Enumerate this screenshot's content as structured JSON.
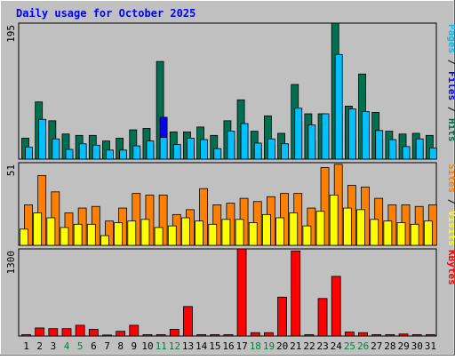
{
  "chart_data": {
    "type": "bar",
    "title": "Daily usage for October 2025",
    "categories": [
      "1",
      "2",
      "3",
      "4",
      "5",
      "6",
      "7",
      "8",
      "9",
      "10",
      "11",
      "12",
      "13",
      "14",
      "15",
      "16",
      "17",
      "18",
      "19",
      "20",
      "21",
      "22",
      "23",
      "24",
      "25",
      "26",
      "27",
      "28",
      "29",
      "30",
      "31"
    ],
    "weekend_days": [
      "4",
      "5",
      "11",
      "12",
      "18",
      "19",
      "25",
      "26"
    ],
    "panels": [
      {
        "id": "hits-files-pages",
        "ymax": 195,
        "ymax_label": "195",
        "labels": [
          "Pages",
          "Files",
          "Hits"
        ],
        "label_colors": [
          "#00c0ff",
          "#0000ff",
          "#007050"
        ],
        "series": [
          {
            "name": "Hits",
            "color": "#007050",
            "values": [
              30,
              82,
              55,
              36,
              34,
              34,
              26,
              30,
              42,
              44,
              140,
              39,
              39,
              46,
              34,
              55,
              85,
              40,
              62,
              37,
              107,
              65,
              65,
              195,
              76,
              122,
              67,
              40,
              36,
              37,
              34
            ]
          },
          {
            "name": "Files",
            "color": "#0000ff",
            "values": [
              14,
              40,
              24,
              12,
              15,
              12,
              10,
              10,
              14,
              22,
              60,
              16,
              18,
              19,
              12,
              28,
              38,
              15,
              20,
              15,
              54,
              26,
              34,
              65,
              28,
              55,
              26,
              20,
              17,
              20,
              15
            ]
          },
          {
            "name": "Pages",
            "color": "#00c0ff",
            "values": [
              17,
              57,
              29,
              14,
              22,
              20,
              13,
              13,
              19,
              26,
              31,
              21,
              30,
              28,
              15,
              40,
              51,
              23,
              29,
              22,
              73,
              49,
              65,
              150,
              72,
              68,
              41,
              28,
              18,
              29,
              16
            ]
          }
        ]
      },
      {
        "id": "visits-sites",
        "ymax": 51,
        "ymax_label": "51",
        "labels": [
          "Sites",
          "Visits"
        ],
        "label_colors": [
          "#ff8000",
          "#ffff00"
        ],
        "series": [
          {
            "name": "Visits",
            "color": "#ff8000",
            "values": [
              25,
              43,
              33,
              20,
              23,
              24,
              15,
              23,
              32,
              31,
              31,
              19,
              22,
              35,
              25,
              26,
              29,
              27,
              30,
              32,
              32,
              23,
              48,
              50,
              37,
              36,
              29,
              25,
              25,
              24,
              25
            ]
          },
          {
            "name": "Sites",
            "color": "#ffff00",
            "values": [
              10,
              20,
              17,
              11,
              13,
              13,
              6,
              14,
              15,
              16,
              11,
              12,
              17,
              15,
              13,
              16,
              16,
              14,
              19,
              17,
              20,
              12,
              21,
              31,
              23,
              22,
              16,
              15,
              14,
              13,
              15
            ]
          }
        ]
      },
      {
        "id": "kbytes",
        "ymax": 1300,
        "ymax_label": "1300",
        "labels": [
          "KBytes"
        ],
        "label_colors": [
          "#ff0000"
        ],
        "series": [
          {
            "name": "KBytes",
            "color": "#ff0000",
            "values": [
              20,
              120,
              110,
              110,
              160,
              100,
              15,
              70,
              160,
              20,
              20,
              100,
              440,
              20,
              20,
              20,
              1300,
              50,
              50,
              580,
              1270,
              20,
              560,
              890,
              60,
              50,
              20,
              20,
              30,
              20,
              20
            ]
          }
        ]
      }
    ]
  }
}
